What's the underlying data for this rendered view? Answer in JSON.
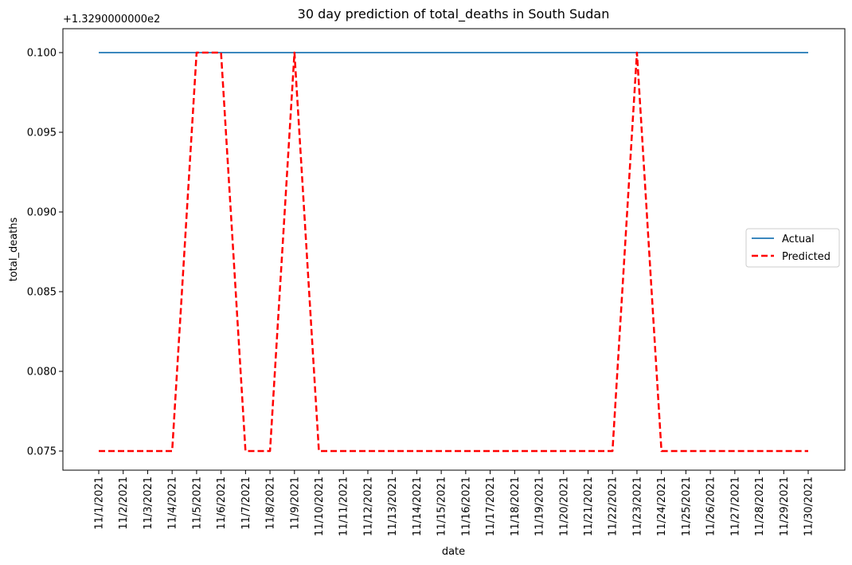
{
  "chart_data": {
    "type": "line",
    "title": "30 day prediction of total_deaths in South Sudan",
    "xlabel": "date",
    "ylabel": "total_deaths",
    "y_offset_label": "+1.3290000000e2",
    "categories": [
      "11/1/2021",
      "11/2/2021",
      "11/3/2021",
      "11/4/2021",
      "11/5/2021",
      "11/6/2021",
      "11/7/2021",
      "11/8/2021",
      "11/9/2021",
      "11/10/2021",
      "11/11/2021",
      "11/12/2021",
      "11/13/2021",
      "11/14/2021",
      "11/15/2021",
      "11/16/2021",
      "11/17/2021",
      "11/18/2021",
      "11/19/2021",
      "11/20/2021",
      "11/21/2021",
      "11/22/2021",
      "11/23/2021",
      "11/24/2021",
      "11/25/2021",
      "11/26/2021",
      "11/27/2021",
      "11/28/2021",
      "11/29/2021",
      "11/30/2021"
    ],
    "ylim": [
      0.0738,
      0.1015
    ],
    "yticks": [
      "0.075",
      "0.080",
      "0.085",
      "0.090",
      "0.095",
      "0.100"
    ],
    "yticks_values": [
      0.075,
      0.08,
      0.085,
      0.09,
      0.095,
      0.1
    ],
    "series": [
      {
        "name": "Actual",
        "color": "#1f77b4",
        "style": "solid",
        "values": [
          0.1,
          0.1,
          0.1,
          0.1,
          0.1,
          0.1,
          0.1,
          0.1,
          0.1,
          0.1,
          0.1,
          0.1,
          0.1,
          0.1,
          0.1,
          0.1,
          0.1,
          0.1,
          0.1,
          0.1,
          0.1,
          0.1,
          0.1,
          0.1,
          0.1,
          0.1,
          0.1,
          0.1,
          0.1,
          0.1
        ]
      },
      {
        "name": "Predicted",
        "color": "#ff0000",
        "style": "dashed",
        "values": [
          0.075,
          0.075,
          0.075,
          0.075,
          0.1,
          0.1,
          0.075,
          0.075,
          0.1,
          0.075,
          0.075,
          0.075,
          0.075,
          0.075,
          0.075,
          0.075,
          0.075,
          0.075,
          0.075,
          0.075,
          0.075,
          0.075,
          0.1,
          0.075,
          0.075,
          0.075,
          0.075,
          0.075,
          0.075,
          0.075
        ]
      }
    ],
    "legend_position": "center-right",
    "grid": false
  }
}
